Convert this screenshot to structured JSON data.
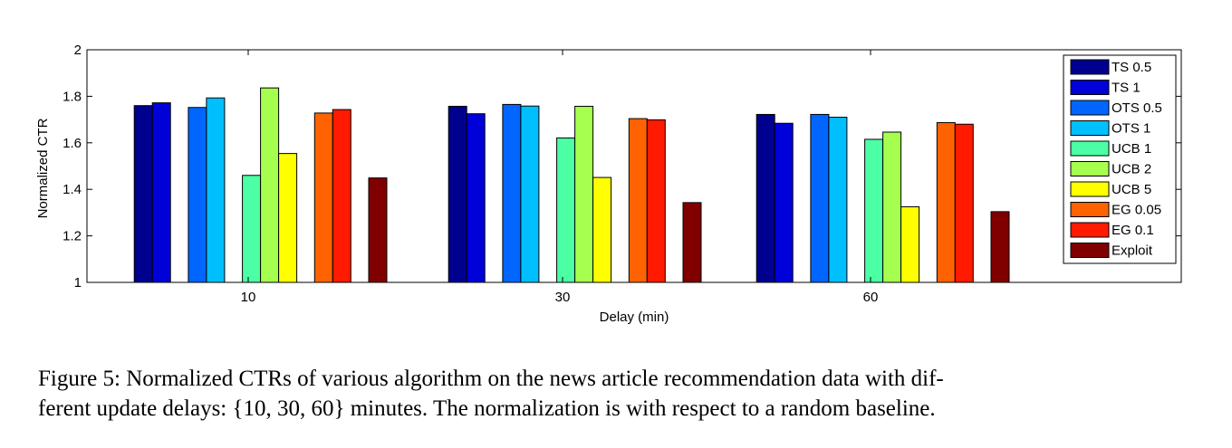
{
  "chart_data": {
    "type": "bar",
    "title": "",
    "xlabel": "Delay (min)",
    "ylabel": "Normalized CTR",
    "categories": [
      "10",
      "30",
      "60"
    ],
    "ylim": [
      1,
      2
    ],
    "yticks": [
      "1",
      "1.2",
      "1.4",
      "1.6",
      "1.8",
      "2"
    ],
    "legend_position": "top-right",
    "grid": false,
    "series": [
      {
        "name": "TS 0.5",
        "color": "#00008f",
        "values": [
          1.76,
          1.757,
          1.722
        ]
      },
      {
        "name": "TS 1",
        "color": "#0000d8",
        "values": [
          1.772,
          1.725,
          1.684
        ]
      },
      {
        "name": "OTS 0.5",
        "color": "#0066ff",
        "values": [
          1.752,
          1.765,
          1.722
        ]
      },
      {
        "name": "OTS 1",
        "color": "#00bfff",
        "values": [
          1.793,
          1.758,
          1.71
        ]
      },
      {
        "name": "UCB 1",
        "color": "#4cffa5",
        "values": [
          1.46,
          1.621,
          1.615
        ]
      },
      {
        "name": "UCB 2",
        "color": "#a6ff4f",
        "values": [
          1.836,
          1.757,
          1.646
        ]
      },
      {
        "name": "UCB 5",
        "color": "#ffff00",
        "values": [
          1.554,
          1.451,
          1.325
        ]
      },
      {
        "name": "EG 0.05",
        "color": "#ff6200",
        "values": [
          1.728,
          1.704,
          1.687
        ]
      },
      {
        "name": "EG 0.1",
        "color": "#ff1a00",
        "values": [
          1.743,
          1.699,
          1.68
        ]
      },
      {
        "name": "Exploit",
        "color": "#800000",
        "values": [
          1.449,
          1.343,
          1.304
        ]
      }
    ]
  },
  "caption": {
    "line1": "Figure 5: Normalized CTRs of various algorithm on the news article recommendation data with dif-",
    "line2": "ferent update delays: {10, 30, 60} minutes. The normalization is with respect to a random baseline."
  }
}
